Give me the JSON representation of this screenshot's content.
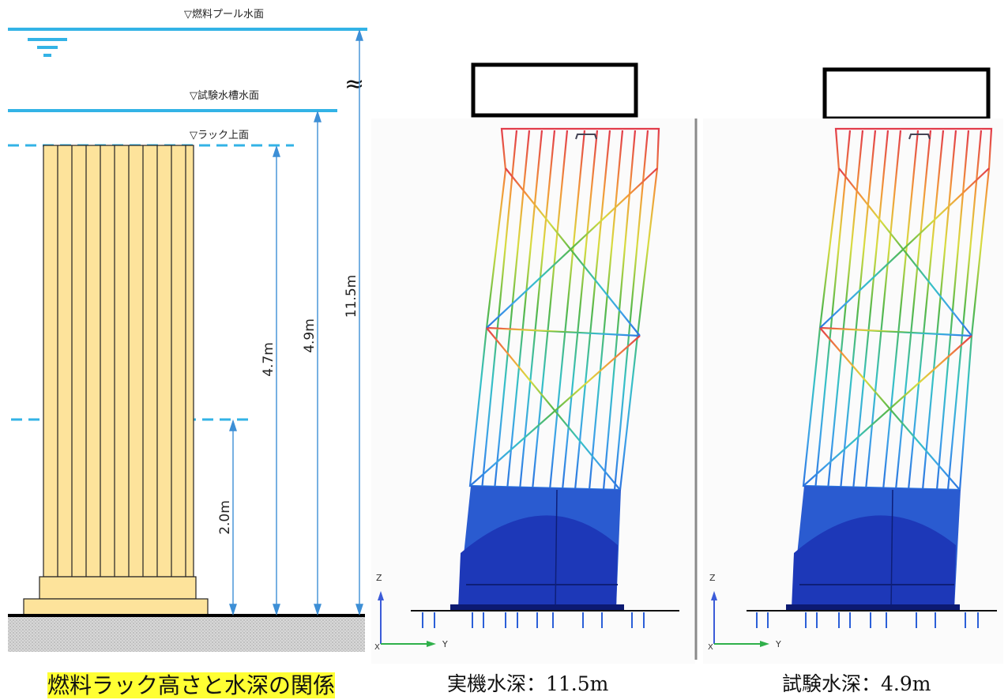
{
  "left_panel": {
    "labels": {
      "pool_surface": "▽燃料プール水面",
      "test_tank_surface": "▽試験水槽水面",
      "rack_top": "▽ラック上面",
      "omission_mark": "≈"
    },
    "dimensions": {
      "d_2_0": "2.0m",
      "d_4_7": "4.7m",
      "d_4_9": "4.9m",
      "d_11_5": "11.5m"
    },
    "caption": "燃料ラック高さと水深の関係"
  },
  "middle_panel": {
    "axes": {
      "z": "Z",
      "y": "Y",
      "x": "X"
    },
    "caption": "実機水深：11.5m"
  },
  "right_panel": {
    "axes": {
      "z": "Z",
      "y": "Y",
      "x": "X"
    },
    "caption": "試験水深：4.9m"
  },
  "colors": {
    "water_line": "#33b3e6",
    "rack_fill": "#fde39b",
    "displacement_base": "#1f3fc8",
    "top_member": "#e85a5a"
  }
}
